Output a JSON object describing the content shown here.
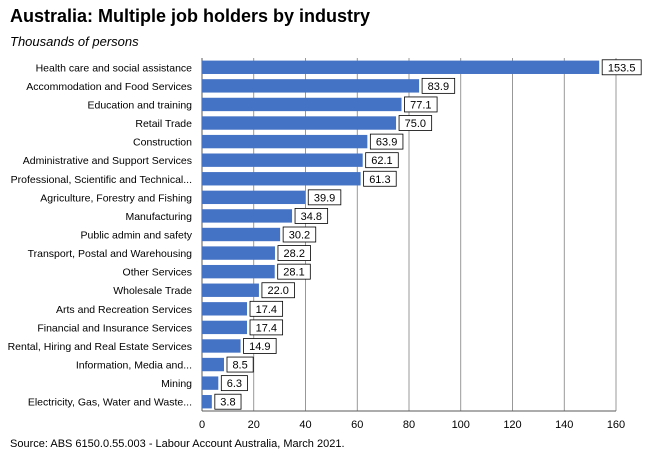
{
  "title": "Australia: Multiple job holders by industry",
  "subtitle": "Thousands of persons",
  "source": "Source: ABS 6150.0.55.003 - Labour Account Australia, March 2021.",
  "chart_data": {
    "type": "bar",
    "orientation": "horizontal",
    "categories": [
      "Health care and social assistance",
      "Accommodation and Food Services",
      "Education and training",
      "Retail Trade",
      "Construction",
      "Administrative and Support Services",
      "Professional, Scientific and Technical...",
      "Agriculture, Forestry and Fishing",
      "Manufacturing",
      "Public admin and safety",
      "Transport, Postal and Warehousing",
      "Other Services",
      "Wholesale Trade",
      "Arts and Recreation Services",
      "Financial and Insurance Services",
      "Rental, Hiring and Real Estate Services",
      "Information, Media and...",
      "Mining",
      "Electricity, Gas, Water and Waste..."
    ],
    "values": [
      153.5,
      83.9,
      77.1,
      75.0,
      63.9,
      62.1,
      61.3,
      39.9,
      34.8,
      30.2,
      28.2,
      28.1,
      22.0,
      17.4,
      17.4,
      14.9,
      8.5,
      6.3,
      3.8
    ],
    "value_labels": [
      "153.5",
      "83.9",
      "77.1",
      "75.0",
      "63.9",
      "62.1",
      "61.3",
      "39.9",
      "34.8",
      "30.2",
      "28.2",
      "28.1",
      "22.0",
      "17.4",
      "17.4",
      "14.9",
      "8.5",
      "6.3",
      "3.8"
    ],
    "xlim": [
      0,
      160
    ],
    "xticks": [
      0,
      20,
      40,
      60,
      80,
      100,
      120,
      140,
      160
    ],
    "grid": "vertical",
    "bar_color": "#4472c4"
  }
}
